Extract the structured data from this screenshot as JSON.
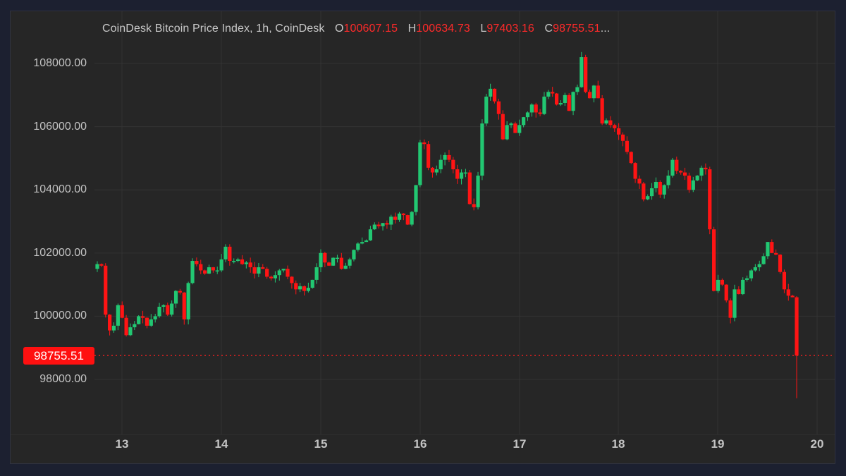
{
  "header": {
    "title": "CoinDesk Bitcoin Price Index, 1h, CoinDesk",
    "open_label": "O",
    "open": "100607.15",
    "high_label": "H",
    "high": "100634.73",
    "low_label": "L",
    "low": "97403.16",
    "close_label": "C",
    "close": "98755.51",
    "ellipsis": "..."
  },
  "current_price_tag": "98755.51",
  "colors": {
    "up": "#22c772",
    "down": "#ff1414",
    "background": "#262626",
    "frame": "#1c2030",
    "grid": "#333333",
    "price_line": "#e02020"
  },
  "chart_data": {
    "type": "candlestick",
    "title": "CoinDesk Bitcoin Price Index, 1h, CoinDesk",
    "xlabel": "",
    "ylabel": "",
    "y_ticks": [
      "108000.00",
      "106000.00",
      "104000.00",
      "102000.00",
      "100000.00",
      "98000.00"
    ],
    "x_ticks": [
      "13",
      "14",
      "15",
      "16",
      "17",
      "18",
      "19",
      "20"
    ],
    "ylim": [
      96200,
      108600
    ],
    "grid": true,
    "last_price": 98755.51,
    "ohlc_last": {
      "open": 100607.15,
      "high": 100634.73,
      "low": 97403.16,
      "close": 98755.51
    },
    "closes": [
      101650,
      101600,
      100050,
      99550,
      99700,
      100350,
      99950,
      99400,
      99650,
      99750,
      100000,
      99950,
      99700,
      99900,
      100000,
      100300,
      100350,
      100050,
      100400,
      100800,
      100750,
      99900,
      101050,
      101750,
      101650,
      101450,
      101350,
      101550,
      101450,
      101450,
      101800,
      102200,
      101750,
      101750,
      101800,
      101650,
      101700,
      101550,
      101350,
      101550,
      101500,
      101250,
      101200,
      101300,
      101450,
      101500,
      101250,
      101050,
      100850,
      100950,
      100800,
      100900,
      101150,
      101550,
      102000,
      101700,
      101600,
      101850,
      101850,
      101500,
      101600,
      101800,
      102100,
      102300,
      102350,
      102400,
      102750,
      102900,
      102850,
      102950,
      102900,
      103150,
      103050,
      103250,
      103200,
      102900,
      103300,
      104150,
      105500,
      105450,
      104700,
      104550,
      104650,
      104950,
      105100,
      104950,
      104650,
      104350,
      104550,
      104550,
      103550,
      103450,
      104450,
      106100,
      106950,
      107200,
      106800,
      106400,
      105600,
      106050,
      106100,
      105800,
      106050,
      106300,
      106450,
      106700,
      106450,
      106400,
      106950,
      107100,
      107050,
      106700,
      106750,
      107000,
      106500,
      107100,
      107250,
      108200,
      107100,
      106900,
      107300,
      106900,
      106100,
      106200,
      106050,
      105950,
      105750,
      105550,
      105200,
      104850,
      104350,
      104200,
      103700,
      103800,
      104050,
      104250,
      103850,
      104150,
      104450,
      104950,
      104600,
      104550,
      104450,
      104000,
      104300,
      104450,
      104700,
      104650,
      102750,
      100800,
      101150,
      101000,
      100500,
      99950,
      100850,
      100700,
      101150,
      101200,
      101450,
      101550,
      101650,
      101900,
      102350,
      102000,
      101950,
      101400,
      100850,
      100650,
      100600,
      98755
    ]
  }
}
